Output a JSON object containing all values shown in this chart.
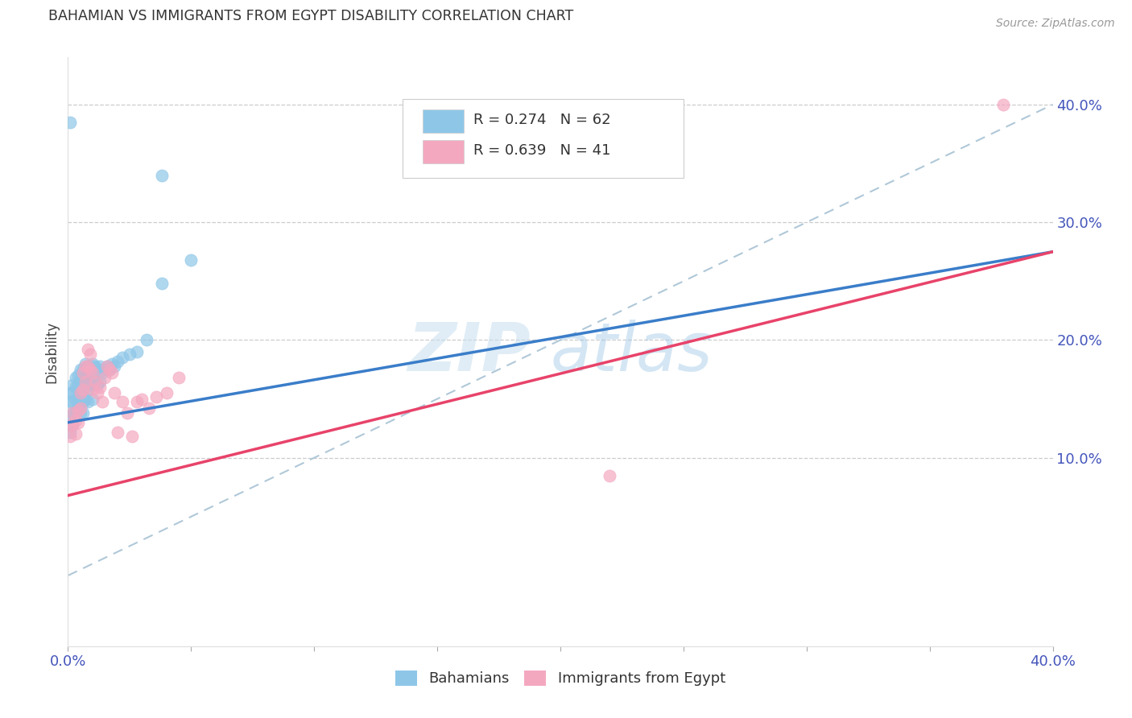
{
  "title": "BAHAMIAN VS IMMIGRANTS FROM EGYPT DISABILITY CORRELATION CHART",
  "source": "Source: ZipAtlas.com",
  "ylabel": "Disability",
  "xlim": [
    0.0,
    0.4
  ],
  "ylim": [
    -0.06,
    0.44
  ],
  "yticks_right": [
    0.1,
    0.2,
    0.3,
    0.4
  ],
  "ytick_right_labels": [
    "10.0%",
    "20.0%",
    "30.0%",
    "40.0%"
  ],
  "xtick_positions": [
    0.0,
    0.05,
    0.1,
    0.15,
    0.2,
    0.25,
    0.3,
    0.35,
    0.4
  ],
  "xtick_labels": [
    "0.0%",
    "",
    "",
    "",
    "",
    "",
    "",
    "",
    "40.0%"
  ],
  "bahamian_color": "#8ec6e8",
  "egypt_color": "#f4a8c0",
  "bahamian_line_color": "#3a7dc9",
  "egypt_line_color": "#e8436a",
  "dashed_line_color": "#b0c8d8",
  "R_bahamian": 0.274,
  "N_bahamian": 62,
  "R_egypt": 0.639,
  "N_egypt": 41,
  "watermark_zip": "ZIP",
  "watermark_atlas": "atlas",
  "legend_label_1": "Bahamians",
  "legend_label_2": "Immigrants from Egypt",
  "bah_line_x0": 0.0,
  "bah_line_y0": 0.13,
  "bah_line_x1": 0.4,
  "bah_line_y1": 0.275,
  "egy_line_x0": 0.0,
  "egy_line_y0": 0.068,
  "egy_line_x1": 0.4,
  "egy_line_y1": 0.275,
  "bahamian_scatter_x": [
    0.001,
    0.001,
    0.001,
    0.001,
    0.002,
    0.002,
    0.002,
    0.002,
    0.002,
    0.003,
    0.003,
    0.003,
    0.003,
    0.004,
    0.004,
    0.004,
    0.004,
    0.005,
    0.005,
    0.005,
    0.005,
    0.005,
    0.006,
    0.006,
    0.006,
    0.006,
    0.006,
    0.007,
    0.007,
    0.007,
    0.007,
    0.008,
    0.008,
    0.008,
    0.008,
    0.009,
    0.009,
    0.01,
    0.01,
    0.01,
    0.01,
    0.011,
    0.011,
    0.012,
    0.012,
    0.013,
    0.013,
    0.014,
    0.015,
    0.016,
    0.017,
    0.018,
    0.019,
    0.02,
    0.022,
    0.025,
    0.028,
    0.032,
    0.038,
    0.05,
    0.038,
    0.001
  ],
  "bahamian_scatter_y": [
    0.155,
    0.148,
    0.135,
    0.122,
    0.162,
    0.155,
    0.148,
    0.138,
    0.128,
    0.168,
    0.16,
    0.15,
    0.14,
    0.17,
    0.162,
    0.152,
    0.142,
    0.175,
    0.168,
    0.158,
    0.148,
    0.138,
    0.175,
    0.168,
    0.158,
    0.148,
    0.138,
    0.18,
    0.17,
    0.16,
    0.15,
    0.178,
    0.168,
    0.158,
    0.148,
    0.178,
    0.165,
    0.18,
    0.172,
    0.162,
    0.15,
    0.178,
    0.165,
    0.175,
    0.162,
    0.178,
    0.165,
    0.172,
    0.175,
    0.178,
    0.175,
    0.18,
    0.178,
    0.182,
    0.185,
    0.188,
    0.19,
    0.2,
    0.248,
    0.268,
    0.34,
    0.385
  ],
  "egypt_scatter_x": [
    0.001,
    0.001,
    0.002,
    0.002,
    0.003,
    0.003,
    0.004,
    0.004,
    0.005,
    0.005,
    0.006,
    0.006,
    0.007,
    0.007,
    0.008,
    0.008,
    0.009,
    0.009,
    0.01,
    0.01,
    0.011,
    0.012,
    0.013,
    0.014,
    0.015,
    0.016,
    0.017,
    0.018,
    0.019,
    0.02,
    0.022,
    0.024,
    0.026,
    0.028,
    0.03,
    0.033,
    0.036,
    0.04,
    0.045,
    0.22,
    0.38
  ],
  "egypt_scatter_y": [
    0.128,
    0.118,
    0.138,
    0.128,
    0.132,
    0.12,
    0.14,
    0.13,
    0.155,
    0.142,
    0.172,
    0.158,
    0.178,
    0.165,
    0.192,
    0.178,
    0.188,
    0.175,
    0.172,
    0.158,
    0.165,
    0.155,
    0.16,
    0.148,
    0.168,
    0.178,
    0.175,
    0.172,
    0.155,
    0.122,
    0.148,
    0.138,
    0.118,
    0.148,
    0.15,
    0.142,
    0.152,
    0.155,
    0.168,
    0.085,
    0.4
  ]
}
